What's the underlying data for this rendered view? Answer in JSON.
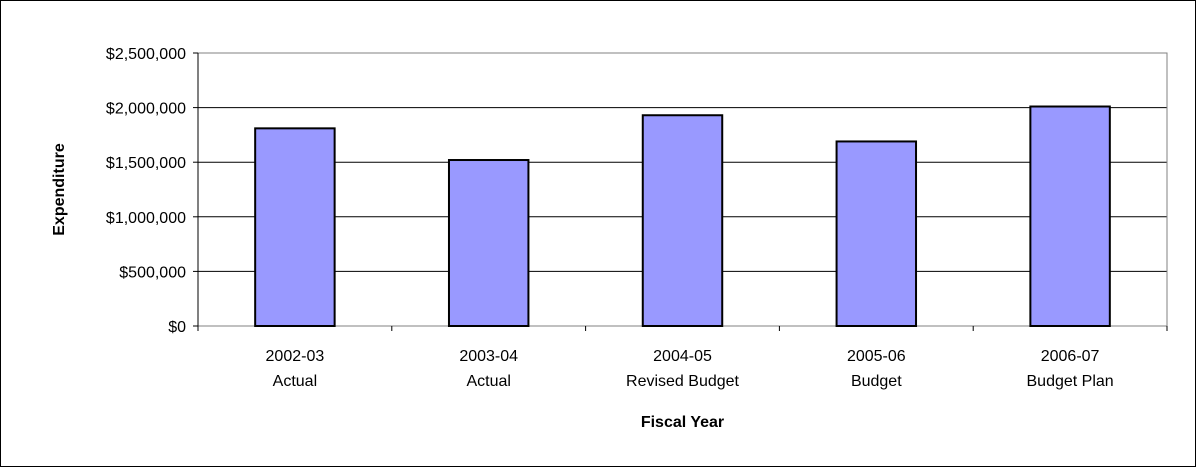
{
  "chart_data": {
    "type": "bar",
    "title": "",
    "xlabel": "Fiscal Year",
    "ylabel": "Expenditure",
    "categories": [
      [
        "2002-03",
        "Actual"
      ],
      [
        "2003-04",
        "Actual"
      ],
      [
        "2004-05",
        "Revised Budget"
      ],
      [
        "2005-06",
        "Budget"
      ],
      [
        "2006-07",
        "Budget Plan"
      ]
    ],
    "values": [
      1810000,
      1520000,
      1930000,
      1690000,
      2010000
    ],
    "ylim": [
      0,
      2500000
    ],
    "yticks": [
      0,
      500000,
      1000000,
      1500000,
      2000000,
      2500000
    ],
    "ytick_labels": [
      "$0",
      "$500,000",
      "$1,000,000",
      "$1,500,000",
      "$2,000,000",
      "$2,500,000"
    ],
    "grid": true,
    "legend": "none",
    "colors": {
      "bar_fill": "#9999ff",
      "bar_stroke": "#000000",
      "gridline": "#000000",
      "plot_border": "#808080",
      "background": "#ffffff"
    }
  }
}
